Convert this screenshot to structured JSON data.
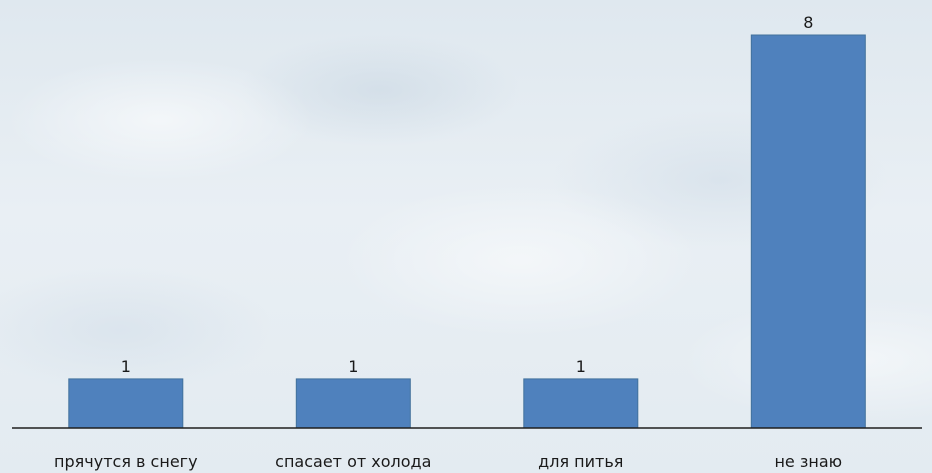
{
  "chart_data": {
    "type": "bar",
    "categories": [
      "прячутся в снегу",
      "спасает от холода",
      "для питья",
      "не знаю"
    ],
    "values": [
      1,
      1,
      1,
      8
    ],
    "data_labels": [
      "1",
      "1",
      "1",
      "8"
    ],
    "title": "",
    "xlabel": "",
    "ylabel": "",
    "ylim": [
      0,
      8
    ],
    "grid": false,
    "legend": "none",
    "bar_color": "#4f81bd"
  }
}
